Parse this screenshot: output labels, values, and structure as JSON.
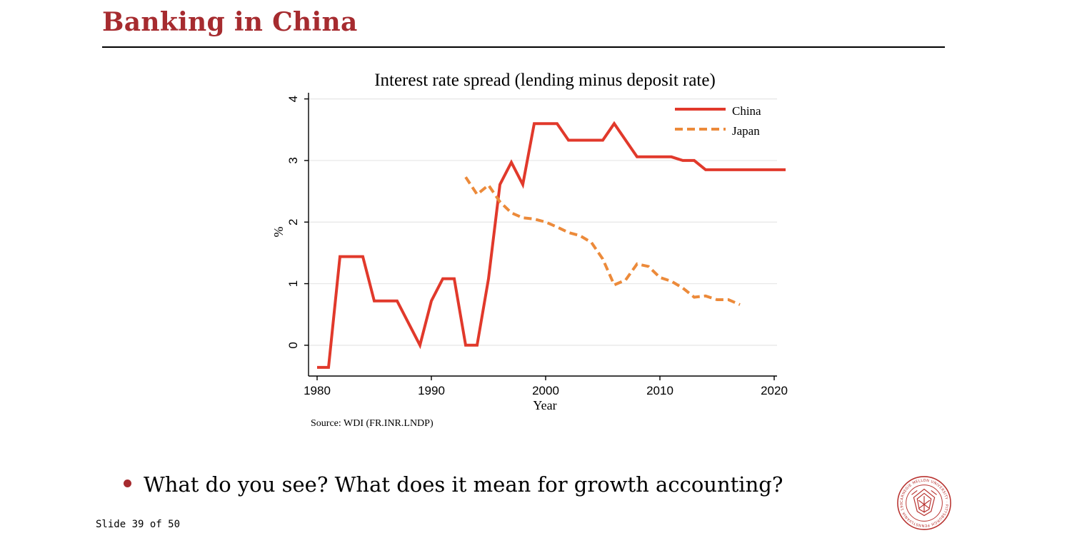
{
  "slide": {
    "title": "Banking in China",
    "bullet": "What do you see? What does it mean for growth accounting?",
    "slide_number": "Slide 39 of 50",
    "seal_text": "CARNEGIE MELLON UNIVERSITY · PITTSBURGH PENNSYLVANIA 1900"
  },
  "colors": {
    "title": "#a62b2f",
    "china": "#e1392b",
    "japan": "#ec8a3a",
    "grid": "#e6e6e6"
  },
  "chart_data": {
    "type": "line",
    "title": "Interest rate spread (lending  minus deposit rate)",
    "xlabel": "Year",
    "ylabel": "%",
    "source": "Source: WDI (FR.INR.LNDP)",
    "xlim": [
      1980,
      2021
    ],
    "ylim": [
      -0.5,
      4.1
    ],
    "xticks": [
      1980,
      1990,
      2000,
      2010,
      2020
    ],
    "yticks": [
      0,
      1,
      2,
      3,
      4
    ],
    "grid": true,
    "legend_position": "top-right",
    "series": [
      {
        "name": "China",
        "style": "solid",
        "color": "#e1392b",
        "x": [
          1980,
          1981,
          1982,
          1983,
          1984,
          1985,
          1986,
          1987,
          1988,
          1989,
          1990,
          1991,
          1992,
          1993,
          1994,
          1995,
          1996,
          1997,
          1998,
          1999,
          2000,
          2001,
          2002,
          2003,
          2004,
          2005,
          2006,
          2007,
          2008,
          2009,
          2010,
          2011,
          2012,
          2013,
          2014,
          2015,
          2016,
          2017,
          2018,
          2019,
          2020,
          2021
        ],
        "y": [
          -0.36,
          -0.36,
          1.44,
          1.44,
          1.44,
          0.72,
          0.72,
          0.72,
          0.36,
          0.0,
          0.72,
          1.08,
          1.08,
          0.0,
          0.0,
          1.08,
          2.61,
          2.97,
          2.61,
          3.6,
          3.6,
          3.6,
          3.33,
          3.33,
          3.33,
          3.33,
          3.6,
          3.33,
          3.06,
          3.06,
          3.06,
          3.06,
          3.0,
          3.0,
          2.85,
          2.85,
          2.85,
          2.85,
          2.85,
          2.85,
          2.85,
          2.85
        ]
      },
      {
        "name": "Japan",
        "style": "dashed",
        "color": "#ec8a3a",
        "x": [
          1993,
          1994,
          1995,
          1996,
          1997,
          1998,
          1999,
          2000,
          2001,
          2002,
          2003,
          2004,
          2005,
          2006,
          2007,
          2008,
          2009,
          2010,
          2011,
          2012,
          2013,
          2014,
          2015,
          2016,
          2017
        ],
        "y": [
          2.73,
          2.45,
          2.6,
          2.33,
          2.15,
          2.07,
          2.05,
          2.0,
          1.92,
          1.83,
          1.78,
          1.67,
          1.4,
          0.98,
          1.06,
          1.32,
          1.28,
          1.1,
          1.04,
          0.93,
          0.78,
          0.8,
          0.74,
          0.74,
          0.66
        ]
      }
    ]
  }
}
